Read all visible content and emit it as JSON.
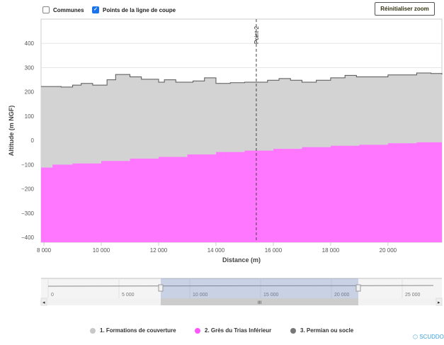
{
  "controls": {
    "communes_label": "Communes",
    "communes_checked": false,
    "points_label": "Points de la ligne de coupe",
    "points_checked": true,
    "reset_label": "Réinitialiser zoom"
  },
  "chart_data": {
    "type": "area",
    "xlabel": "Distance (m)",
    "ylabel": "Altitude (m NGF)",
    "xlim": [
      7900,
      21880
    ],
    "ylim": [
      -420,
      500
    ],
    "xticks": [
      8000,
      10000,
      12000,
      14000,
      16000,
      18000,
      20000
    ],
    "xtick_labels": [
      "8 000",
      "10 000",
      "12 000",
      "14 000",
      "16 000",
      "18 000",
      "20 000"
    ],
    "yticks": [
      400,
      300,
      200,
      100,
      0,
      -100,
      -200,
      -300,
      -400
    ],
    "ytick_labels": [
      "400",
      "300",
      "200",
      "100",
      "0",
      "−100",
      "−200",
      "−300",
      "−400"
    ],
    "plotline": {
      "x": 15407,
      "label": "Point 2"
    },
    "series": [
      {
        "name": "1. Formations de couverture",
        "color": "#d3d3d3",
        "x": [
          7900,
          8600,
          9000,
          9300,
          9700,
          10200,
          10500,
          11000,
          11400,
          12000,
          12200,
          12600,
          13000,
          13200,
          13600,
          14000,
          14500,
          15000,
          15400,
          15800,
          16200,
          16600,
          17000,
          17500,
          18000,
          18500,
          18900,
          19400,
          20000,
          20500,
          21000,
          21500,
          21880
        ],
        "y": [
          222,
          220,
          228,
          235,
          228,
          250,
          272,
          262,
          252,
          240,
          250,
          240,
          240,
          245,
          258,
          235,
          238,
          240,
          240,
          248,
          255,
          248,
          240,
          248,
          258,
          268,
          262,
          262,
          270,
          270,
          278,
          276,
          272
        ]
      },
      {
        "name": "2. Grès du Trias Inférieur",
        "color": "#ff77ff",
        "x": [
          7900,
          8300,
          9000,
          10000,
          11000,
          12000,
          13000,
          14000,
          15000,
          16000,
          17000,
          18000,
          19000,
          20000,
          21000,
          21880
        ],
        "y": [
          -112,
          -100,
          -95,
          -85,
          -75,
          -68,
          -58,
          -48,
          -42,
          -35,
          -28,
          -22,
          -18,
          -12,
          -8,
          -3
        ]
      },
      {
        "name": "3. Permian ou socle",
        "color": "#777777",
        "x": [],
        "y": []
      }
    ],
    "navigator": {
      "xlim": [
        0,
        27000
      ],
      "ticks": [
        0,
        5000,
        10000,
        15000,
        20000,
        25000
      ],
      "tick_labels": [
        "0",
        "5 000",
        "10 000",
        "15 000",
        "20 000",
        "25 000"
      ],
      "selection": [
        7750,
        21700
      ]
    }
  },
  "brand": "SCUDDO"
}
